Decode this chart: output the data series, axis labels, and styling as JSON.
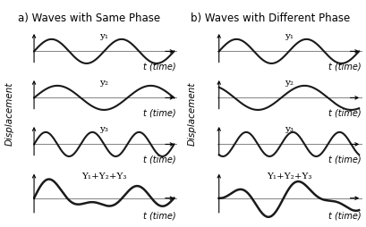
{
  "title_a": "a) Waves with Same Phase",
  "title_b": "b) Waves with Different Phase",
  "ylabel": "Displacement",
  "xlabel": "t (time)",
  "wave_labels_a": [
    "y₁",
    "y₂",
    "y₃",
    "Y₁+Y₂+Y₃"
  ],
  "wave_labels_b": [
    "y₁",
    "y₂",
    "y₃",
    "Y₁+Y₂+Y₃"
  ],
  "freq_a": [
    2.0,
    1.5,
    3.0
  ],
  "freq_b": [
    2.0,
    1.5,
    3.0
  ],
  "phase_a": [
    0.0,
    0.0,
    0.0
  ],
  "phase_b": [
    0.0,
    2.094395,
    4.18879
  ],
  "amp_a": [
    1.0,
    1.0,
    1.0
  ],
  "amp_b": [
    1.0,
    1.0,
    1.0
  ],
  "wave_color": "#1a1a1a",
  "axis_color": "#888888",
  "title_fontsize": 8.5,
  "label_fontsize": 7,
  "wave_label_fontsize": 7.5
}
